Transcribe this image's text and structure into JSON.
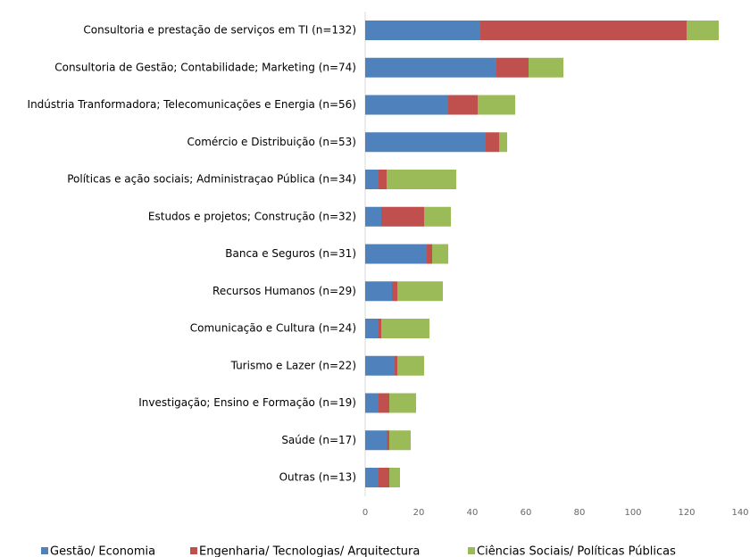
{
  "chart_data": {
    "type": "stacked_hbar",
    "categories": [
      "Consultoria e prestação de serviços em TI (n=132)",
      "Consultoria de Gestão; Contabilidade; Marketing (n=74)",
      "Indústria Tranformadora; Telecomunicações e Energia (n=56)",
      "Comércio e Distribuição (n=53)",
      "Políticas e ação sociais; Administraçao Pública (n=34)",
      "Estudos e projetos; Construção (n=32)",
      "Banca e Seguros (n=31)",
      "Recursos Humanos (n=29)",
      "Comunicação e Cultura (n=24)",
      "Turismo e Lazer (n=22)",
      "Investigação; Ensino e Formação (n=19)",
      "Saúde (n=17)",
      "Outras (n=13)"
    ],
    "series": [
      {
        "name": "Gestão/ Economia",
        "color": "#4f81bd",
        "values": [
          43,
          49,
          31,
          45,
          5,
          6,
          23,
          10,
          5,
          11,
          5,
          8,
          5
        ]
      },
      {
        "name": "Engenharia/ Tecnologias/ Arquitectura",
        "color": "#c0504d",
        "values": [
          77,
          12,
          11,
          5,
          3,
          16,
          2,
          2,
          1,
          1,
          4,
          1,
          4
        ]
      },
      {
        "name": "Ciências Sociais/ Políticas Públicas",
        "color": "#9bbb59",
        "values": [
          12,
          13,
          14,
          3,
          26,
          10,
          6,
          17,
          18,
          10,
          10,
          8,
          4
        ]
      }
    ],
    "xlim": [
      0,
      140
    ],
    "xticks": [
      0,
      20,
      40,
      60,
      80,
      100,
      120,
      140
    ],
    "grid": false,
    "legend": "bottom"
  }
}
